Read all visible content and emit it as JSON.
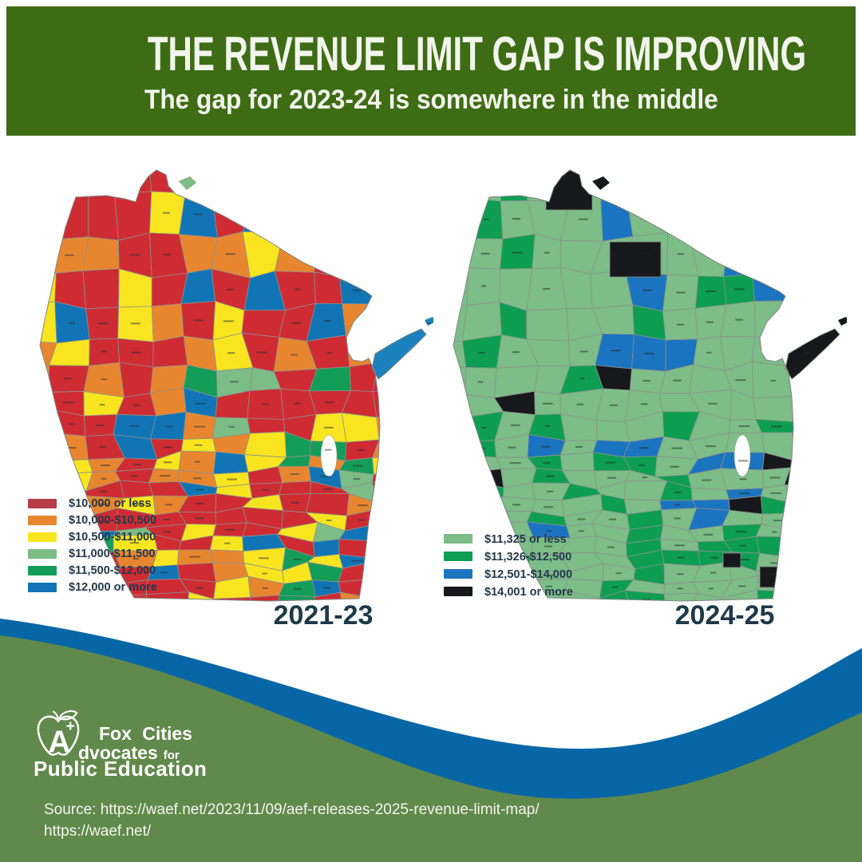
{
  "header": {
    "title": "THE REVENUE LIMIT GAP IS IMPROVING",
    "subtitle": "The gap for 2023-24 is somewhere in the middle",
    "bg_color": "#3D6C15",
    "text_color": "#F2F5EC"
  },
  "maps": [
    {
      "year_label": "2021-23",
      "legend": [
        {
          "label": "$10,000 or less",
          "color": "#B63E46"
        },
        {
          "label": "$10,000-$10,500",
          "color": "#E8862F"
        },
        {
          "label": "$10,500-$11,000",
          "color": "#F8E51F"
        },
        {
          "label": "$11,000-$11,500",
          "color": "#7CBD85"
        },
        {
          "label": "$11,500-$12,000",
          "color": "#149C59"
        },
        {
          "label": "$12,000 or more",
          "color": "#1175B5"
        }
      ],
      "palette": [
        {
          "color": "#CF2B33",
          "weight": 0.44
        },
        {
          "color": "#E8862F",
          "weight": 0.2
        },
        {
          "color": "#F8E51F",
          "weight": 0.13
        },
        {
          "color": "#7CBD85",
          "weight": 0.07
        },
        {
          "color": "#149C59",
          "weight": 0.06
        },
        {
          "color": "#1175B5",
          "weight": 0.1
        }
      ],
      "door_color": "#1B82BE",
      "islet_color": "#7CBD85",
      "label_color": "#252F3A"
    },
    {
      "year_label": "2024-25",
      "legend": [
        {
          "label": "$11,325 or less",
          "color": "#7CBD85"
        },
        {
          "label": "$11,326-$12,500",
          "color": "#0D9E53"
        },
        {
          "label": "$12,501-$14,000",
          "color": "#1B74C0"
        },
        {
          "label": "$14,001 or more",
          "color": "#17181C"
        }
      ],
      "palette": [
        {
          "color": "#7CBD88",
          "weight": 0.68
        },
        {
          "color": "#0D9E53",
          "weight": 0.19
        },
        {
          "color": "#1B74C0",
          "weight": 0.09
        },
        {
          "color": "#17181C",
          "weight": 0.04
        }
      ],
      "door_color": "#17181C",
      "islet_color": "#17181C",
      "label_color": "#1D2A22"
    }
  ],
  "footer": {
    "wave_blue": "#0767A6",
    "wave_green": "#61894B",
    "logo": {
      "apple_letter": "A",
      "apple_plus": "+",
      "line1": "Fox Cities",
      "line2_main": "dvocates",
      "line2_small": "for",
      "line3": "Public Education"
    },
    "source_line1": "Source: https://waef.net/2023/11/09/aef-releases-2025-revenue-limit-map/",
    "source_line2": "https://waef.net/"
  }
}
